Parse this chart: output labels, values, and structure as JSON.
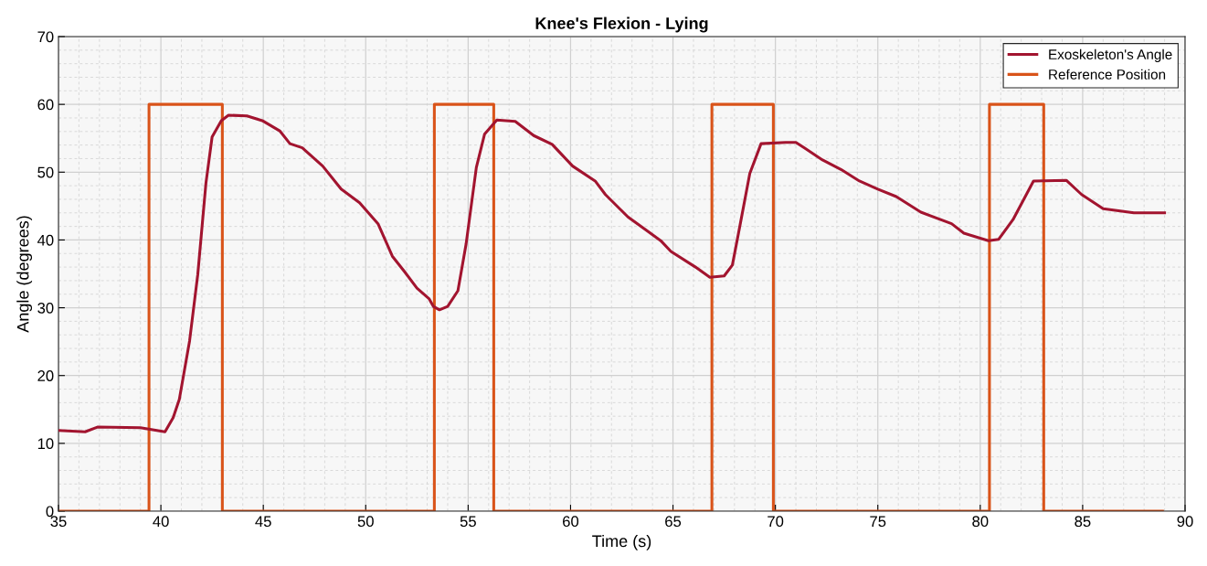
{
  "chart_data": {
    "type": "line",
    "title": "Knee's Flexion - Lying",
    "xlabel": "Time (s)",
    "ylabel": "Angle (degrees)",
    "xlim": [
      35,
      90
    ],
    "ylim": [
      0,
      70
    ],
    "xticks": [
      35,
      40,
      45,
      50,
      55,
      60,
      65,
      70,
      75,
      80,
      85,
      90
    ],
    "yticks": [
      0,
      10,
      20,
      30,
      40,
      50,
      60,
      70
    ],
    "grid": true,
    "legend": "top right",
    "marker": "none",
    "line_style": "solid",
    "series": [
      {
        "name": "Exoskeleton's Angle",
        "color": "#a2142f",
        "x": [
          35,
          36.3,
          36.9,
          39.0,
          40.2,
          40.6,
          40.9,
          41.4,
          41.8,
          42.2,
          42.5,
          42.95,
          43.3,
          44.2,
          44.95,
          45.8,
          46.3,
          46.9,
          47.9,
          48.8,
          49.7,
          50.6,
          51.3,
          51.9,
          52.5,
          53.1,
          53.3,
          53.6,
          54.0,
          54.5,
          54.9,
          55.4,
          55.8,
          56.4,
          57.3,
          58.2,
          59.1,
          60.1,
          61.2,
          61.7,
          62.8,
          64.4,
          64.9,
          66.1,
          66.8,
          67.5,
          67.9,
          68.3,
          68.75,
          69.3,
          70.5,
          71.0,
          71.4,
          72.3,
          73.2,
          74.1,
          75.0,
          75.9,
          77.1,
          78.6,
          79.2,
          80.4,
          80.9,
          81.6,
          82.6,
          84.2,
          84.95,
          86.0,
          87.5,
          89.0
        ],
        "values": [
          11.9,
          11.7,
          12.4,
          12.3,
          11.7,
          13.8,
          16.5,
          25.1,
          34.9,
          48.4,
          55.2,
          57.6,
          58.4,
          58.3,
          57.6,
          56.1,
          54.2,
          53.6,
          50.9,
          47.5,
          45.5,
          42.4,
          37.6,
          35.3,
          32.9,
          31.3,
          30.2,
          29.7,
          30.2,
          32.5,
          39.4,
          50.7,
          55.6,
          57.7,
          57.5,
          55.4,
          54.1,
          50.9,
          48.7,
          46.7,
          43.4,
          39.9,
          38.3,
          36.0,
          34.5,
          34.7,
          36.3,
          42.6,
          49.8,
          54.2,
          54.4,
          54.4,
          53.6,
          51.8,
          50.4,
          48.7,
          47.5,
          46.4,
          44.1,
          42.4,
          41.0,
          39.9,
          40.1,
          43.0,
          48.7,
          48.8,
          46.7,
          44.6,
          44.0,
          44.0
        ]
      },
      {
        "name": "Reference Position",
        "color": "#d95319",
        "x": [
          35,
          39.42,
          39.42,
          43.0,
          43.0,
          53.35,
          53.35,
          56.25,
          56.25,
          66.9,
          66.9,
          69.9,
          69.9,
          80.45,
          80.45,
          83.1,
          83.1,
          88.9
        ],
        "values": [
          0,
          0,
          60,
          60,
          0,
          0,
          60,
          60,
          0,
          0,
          60,
          60,
          0,
          0,
          60,
          60,
          0,
          0
        ]
      }
    ]
  }
}
